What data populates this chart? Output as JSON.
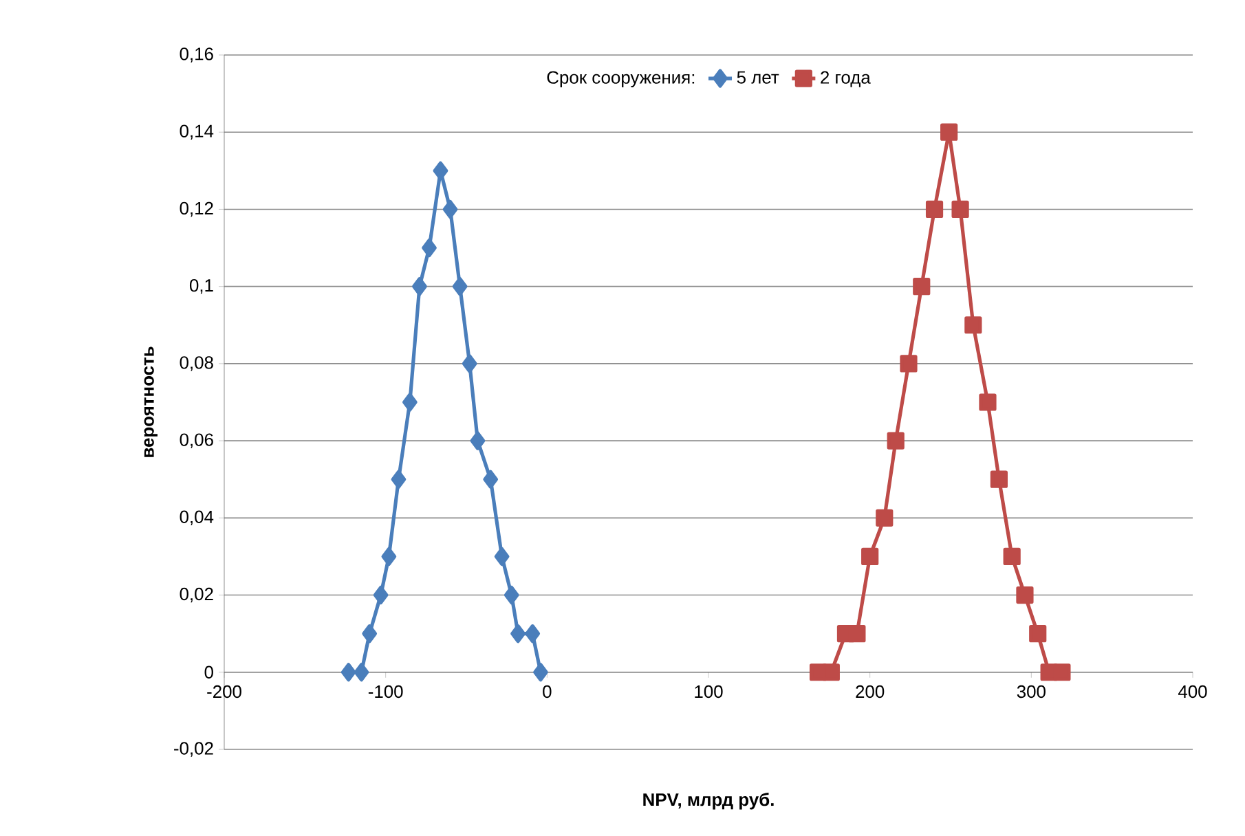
{
  "chart_data": {
    "type": "line",
    "xlabel": "NPV, млрд руб.",
    "ylabel": "вероятность",
    "legend_title": "Срок сооружения:",
    "legend": "top",
    "grid": "y",
    "xlim": [
      -200,
      400
    ],
    "xticks": [
      -200,
      -100,
      0,
      100,
      200,
      300,
      400
    ],
    "ylim": [
      -0.02,
      0.16
    ],
    "yticks": [
      {
        "value": -0.02,
        "label": "-0,02"
      },
      {
        "value": 0,
        "label": "0"
      },
      {
        "value": 0.02,
        "label": "0,02"
      },
      {
        "value": 0.04,
        "label": "0,04"
      },
      {
        "value": 0.06,
        "label": "0,06"
      },
      {
        "value": 0.08,
        "label": "0,08"
      },
      {
        "value": 0.1,
        "label": "0,1"
      },
      {
        "value": 0.12,
        "label": "0,12"
      },
      {
        "value": 0.14,
        "label": "0,14"
      },
      {
        "value": 0.16,
        "label": "0,16"
      }
    ],
    "series": [
      {
        "name": "5 лет",
        "color": "#4a7ebb",
        "marker": "diamond",
        "x": [
          -123,
          -115,
          -110,
          -103,
          -98,
          -92,
          -85,
          -79,
          -73,
          -66,
          -60,
          -54,
          -48,
          -43,
          -35,
          -28,
          -22,
          -18,
          -9,
          -4
        ],
        "values": [
          0,
          0,
          0.01,
          0.02,
          0.03,
          0.05,
          0.07,
          0.1,
          0.11,
          0.13,
          0.12,
          0.1,
          0.08,
          0.06,
          0.05,
          0.03,
          0.02,
          0.01,
          0.01,
          0
        ]
      },
      {
        "name": "2 года",
        "color": "#be4b48",
        "marker": "square",
        "x": [
          168,
          176,
          185,
          192,
          200,
          209,
          216,
          224,
          232,
          240,
          249,
          256,
          264,
          273,
          280,
          288,
          296,
          304,
          311,
          319
        ],
        "values": [
          0,
          0,
          0.01,
          0.01,
          0.03,
          0.04,
          0.06,
          0.08,
          0.1,
          0.12,
          0.14,
          0.12,
          0.09,
          0.07,
          0.05,
          0.03,
          0.02,
          0.01,
          0,
          0
        ]
      }
    ]
  }
}
